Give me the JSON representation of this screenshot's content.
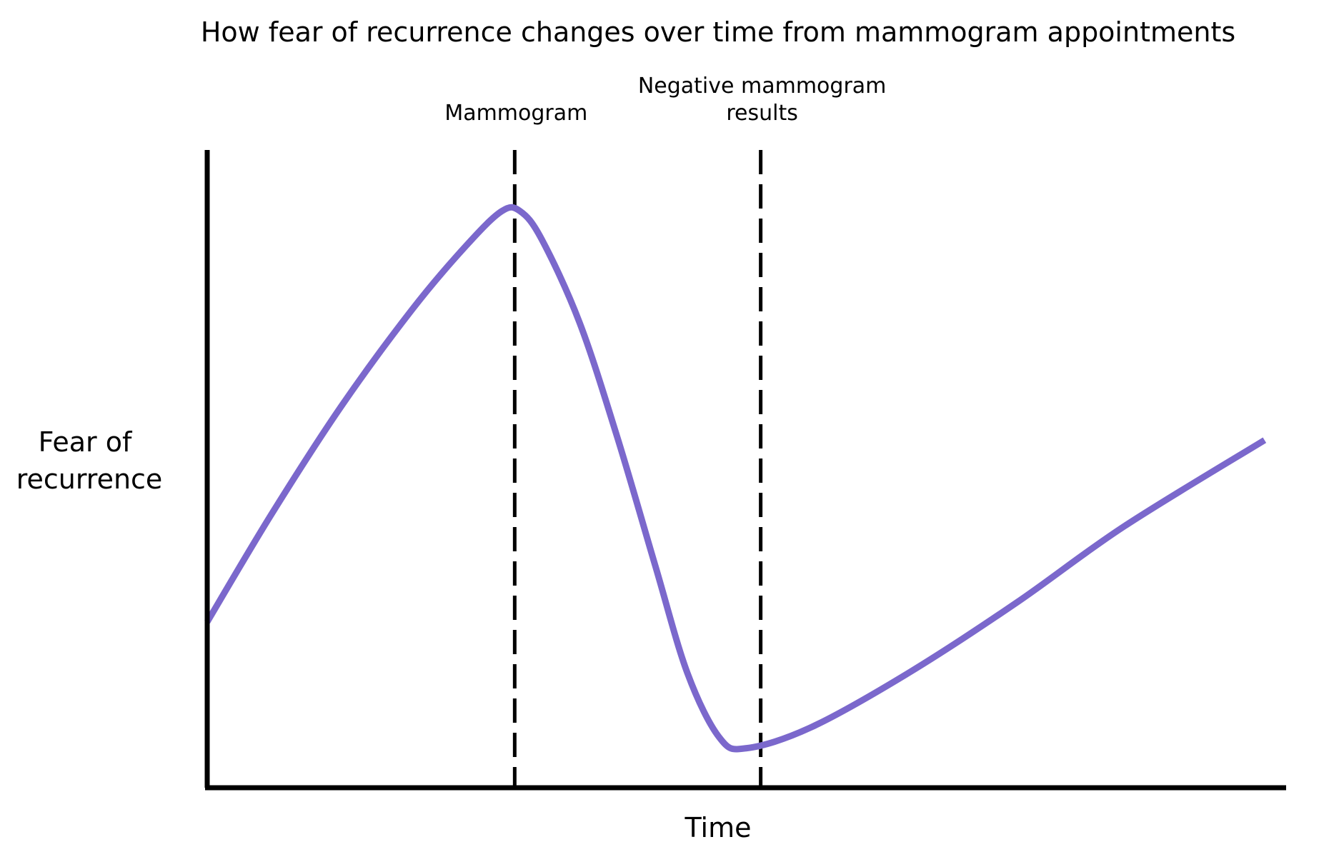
{
  "chart_data": {
    "type": "line",
    "title": "How fear of recurrence changes over time from mammogram appointments",
    "xlabel": "Time",
    "ylabel": [
      "Fear of",
      "recurrence"
    ],
    "axis_ticks": false,
    "grid": false,
    "legend": "none",
    "xlim": [
      0,
      100
    ],
    "ylim": [
      0,
      100
    ],
    "series": [
      {
        "color": "#7B68CC",
        "points": [
          {
            "x": 0.0,
            "y": 26.0
          },
          {
            "x": 6.0,
            "y": 43.0
          },
          {
            "x": 12.5,
            "y": 60.0
          },
          {
            "x": 19.0,
            "y": 75.0
          },
          {
            "x": 24.0,
            "y": 85.0
          },
          {
            "x": 27.3,
            "y": 90.4
          },
          {
            "x": 29.0,
            "y": 90.4
          },
          {
            "x": 31.0,
            "y": 86.0
          },
          {
            "x": 34.5,
            "y": 73.0
          },
          {
            "x": 38.0,
            "y": 55.0
          },
          {
            "x": 41.5,
            "y": 35.0
          },
          {
            "x": 44.5,
            "y": 18.0
          },
          {
            "x": 47.5,
            "y": 7.8
          },
          {
            "x": 50.0,
            "y": 6.2
          },
          {
            "x": 56.0,
            "y": 9.5
          },
          {
            "x": 65.0,
            "y": 18.0
          },
          {
            "x": 75.0,
            "y": 29.0
          },
          {
            "x": 85.0,
            "y": 41.0
          },
          {
            "x": 98.0,
            "y": 54.5
          }
        ]
      }
    ],
    "vertical_markers": [
      {
        "x": 28.5,
        "label_lines": [
          "Mammogram"
        ]
      },
      {
        "x": 51.3,
        "label_lines": [
          "Negative mammogram",
          "results"
        ]
      }
    ],
    "colors": {
      "line": "#7B68CC",
      "axis": "#000000",
      "marker": "#000000"
    }
  }
}
